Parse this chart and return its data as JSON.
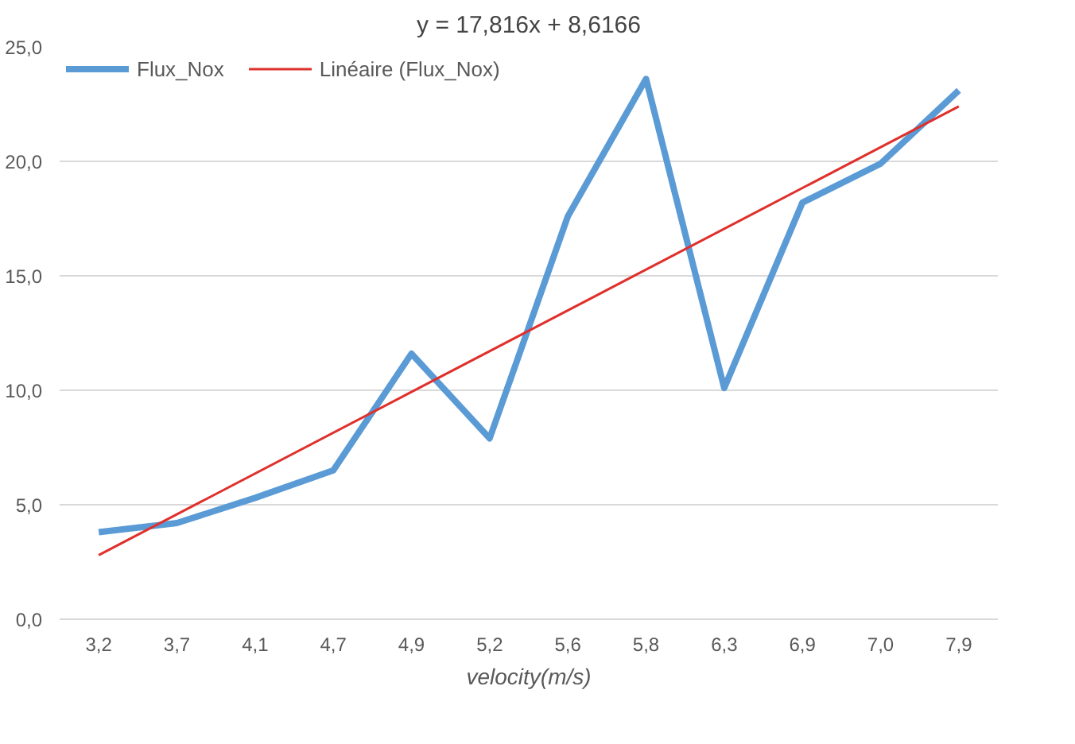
{
  "chart_data": {
    "type": "line",
    "xlabel": "velocity(m/s)",
    "categories": [
      "3,2",
      "3,7",
      "4,1",
      "4,7",
      "4,9",
      "5,2",
      "5,6",
      "5,8",
      "6,3",
      "6,9",
      "7,0",
      "7,9"
    ],
    "series": [
      {
        "name": "Flux_Nox",
        "color": "#5b9bd5",
        "values": [
          3.8,
          4.2,
          5.3,
          6.5,
          11.6,
          7.9,
          17.6,
          23.6,
          10.1,
          18.2,
          19.9,
          23.1
        ]
      },
      {
        "name": "Linéaire (Flux_Nox)",
        "color": "#e0302c",
        "x": [
          "3,2",
          "7,9"
        ],
        "values": [
          2.8,
          22.4
        ]
      }
    ],
    "annotations": [
      "y = 17,816x + 8,6166"
    ],
    "ylim": [
      0,
      25
    ],
    "yticks": [
      {
        "value": 0,
        "label": "0,0"
      },
      {
        "value": 5,
        "label": "5,0"
      },
      {
        "value": 10,
        "label": "10,0"
      },
      {
        "value": 15,
        "label": "15,0"
      },
      {
        "value": 20,
        "label": "20,0"
      },
      {
        "value": 25,
        "label": "25,0"
      }
    ],
    "grid": "y",
    "legend": "top left",
    "marker": "none",
    "line_style": "solid"
  }
}
